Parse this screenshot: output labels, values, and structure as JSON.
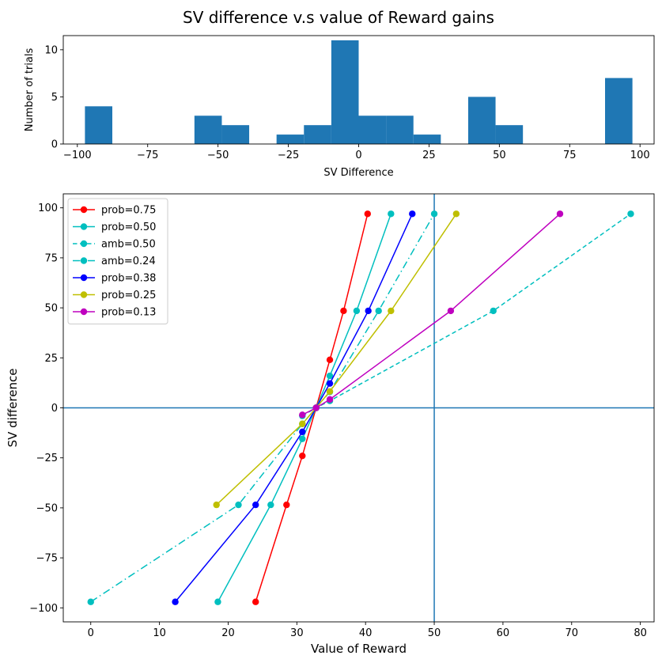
{
  "figure": {
    "suptitle": "SV difference v.s value of Reward gains"
  },
  "chart_data": [
    {
      "type": "bar",
      "subtype": "histogram",
      "xlabel": "SV Difference",
      "ylabel": "Number of trials",
      "xlim": [
        -105,
        105
      ],
      "ylim": [
        0,
        11.5
      ],
      "xticks": [
        -100,
        -75,
        -50,
        -25,
        0,
        25,
        50,
        75,
        100
      ],
      "yticks": [
        0,
        5,
        10
      ],
      "bar_color": "#1f77b4",
      "bins": [
        {
          "start": -97.3,
          "end": -87.57,
          "count": 4
        },
        {
          "start": -58.38,
          "end": -48.65,
          "count": 3
        },
        {
          "start": -48.65,
          "end": -38.92,
          "count": 2
        },
        {
          "start": -29.19,
          "end": -19.46,
          "count": 1
        },
        {
          "start": -19.46,
          "end": -9.73,
          "count": 2
        },
        {
          "start": -9.73,
          "end": 0.0,
          "count": 11
        },
        {
          "start": 0.0,
          "end": 9.73,
          "count": 3
        },
        {
          "start": 9.73,
          "end": 19.46,
          "count": 3
        },
        {
          "start": 19.46,
          "end": 29.19,
          "count": 1
        },
        {
          "start": 38.92,
          "end": 48.65,
          "count": 5
        },
        {
          "start": 48.65,
          "end": 58.38,
          "count": 2
        },
        {
          "start": 87.57,
          "end": 97.3,
          "count": 7
        }
      ]
    },
    {
      "type": "line",
      "xlabel": "Value of Reward",
      "ylabel": "SV difference",
      "xlim": [
        -4,
        82
      ],
      "ylim": [
        -107,
        107
      ],
      "xticks": [
        0,
        10,
        20,
        30,
        40,
        50,
        60,
        70,
        80
      ],
      "yticks": [
        -100,
        -75,
        -50,
        -25,
        0,
        25,
        50,
        75,
        100
      ],
      "reference_lines": {
        "vertical_x": 50,
        "horizontal_y": 0,
        "color": "#1f77b4"
      },
      "legend_position": "upper-left",
      "series": [
        {
          "name": "prob=0.75",
          "color": "#ff0000",
          "dash": "solid",
          "points": [
            [
              24,
              -97
            ],
            [
              28.5,
              -48.5
            ],
            [
              30.8,
              -24
            ],
            [
              32.8,
              0
            ],
            [
              34.8,
              24
            ],
            [
              36.8,
              48.5
            ],
            [
              40.3,
              97
            ]
          ]
        },
        {
          "name": "prob=0.50",
          "color": "#00bfbf",
          "dash": "solid",
          "points": [
            [
              18.5,
              -97
            ],
            [
              26.2,
              -48.5
            ],
            [
              30.8,
              -15.5
            ],
            [
              32.8,
              0
            ],
            [
              34.8,
              16
            ],
            [
              38.7,
              48.5
            ],
            [
              43.7,
              97
            ]
          ]
        },
        {
          "name": "amb=0.50",
          "color": "#00bfbf",
          "dash": "dashed",
          "points": [
            [
              30.8,
              -4
            ],
            [
              32.8,
              0
            ],
            [
              34.8,
              3.5
            ],
            [
              58.6,
              48.5
            ],
            [
              78.6,
              97
            ]
          ]
        },
        {
          "name": "amb=0.24",
          "color": "#00bfbf",
          "dash": "dashdot",
          "points": [
            [
              0,
              -97
            ],
            [
              21.5,
              -48.5
            ],
            [
              30.8,
              -8
            ],
            [
              32.8,
              0
            ],
            [
              34.8,
              8
            ],
            [
              41.9,
              48.5
            ],
            [
              50,
              97
            ]
          ]
        },
        {
          "name": "prob=0.38",
          "color": "#0000ff",
          "dash": "solid",
          "points": [
            [
              12.3,
              -97
            ],
            [
              24,
              -48.5
            ],
            [
              30.8,
              -12
            ],
            [
              32.8,
              0
            ],
            [
              34.8,
              12.2
            ],
            [
              40.4,
              48.5
            ],
            [
              46.8,
              97
            ]
          ]
        },
        {
          "name": "prob=0.25",
          "color": "#bfbf00",
          "dash": "solid",
          "points": [
            [
              18.3,
              -48.5
            ],
            [
              30.8,
              -8
            ],
            [
              32.8,
              0
            ],
            [
              34.8,
              8.2
            ],
            [
              43.7,
              48.5
            ],
            [
              53.2,
              97
            ]
          ]
        },
        {
          "name": "prob=0.13",
          "color": "#bf00bf",
          "dash": "solid",
          "points": [
            [
              30.8,
              -3.5
            ],
            [
              32.8,
              0
            ],
            [
              34.8,
              4.2
            ],
            [
              52.4,
              48.5
            ],
            [
              68.3,
              97
            ]
          ]
        }
      ]
    }
  ]
}
